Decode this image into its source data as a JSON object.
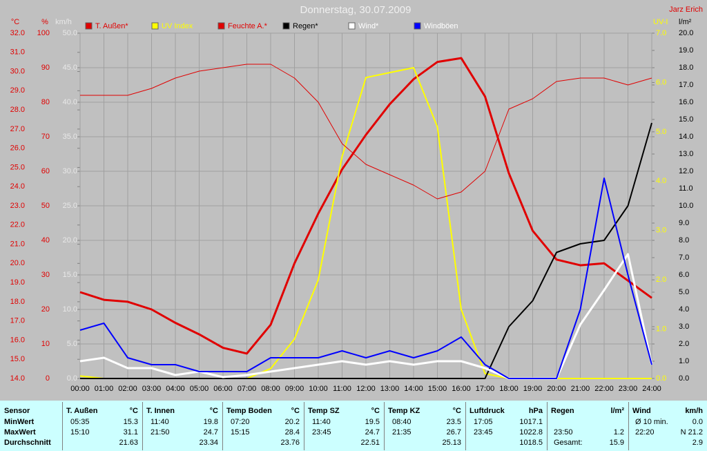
{
  "chart_data": {
    "type": "line",
    "title": "Donnerstag, 30.07.2009",
    "author": "Jarz Erich",
    "grid": true,
    "x": [
      "00:00",
      "01:00",
      "02:00",
      "03:00",
      "04:00",
      "05:00",
      "06:00",
      "07:00",
      "08:00",
      "09:00",
      "10:00",
      "11:00",
      "12:00",
      "13:00",
      "14:00",
      "15:00",
      "16:00",
      "17:00",
      "18:00",
      "19:00",
      "20:00",
      "21:00",
      "22:00",
      "23:00",
      "24:00"
    ],
    "axes": [
      {
        "label": "°C",
        "color": "#e00000",
        "lim": [
          14,
          32
        ],
        "ticks": [
          {
            "value": 14,
            "label": "14.0"
          },
          {
            "value": 15,
            "label": "15.0"
          },
          {
            "value": 16,
            "label": "16.0"
          },
          {
            "value": 17,
            "label": "17.0"
          },
          {
            "value": 18,
            "label": "18.0"
          },
          {
            "value": 19,
            "label": "19.0"
          },
          {
            "value": 20,
            "label": "20.0"
          },
          {
            "value": 21,
            "label": "21.0"
          },
          {
            "value": 22,
            "label": "22.0"
          },
          {
            "value": 23,
            "label": "23.0"
          },
          {
            "value": 24,
            "label": "24.0"
          },
          {
            "value": 25,
            "label": "25.0"
          },
          {
            "value": 26,
            "label": "26.0"
          },
          {
            "value": 27,
            "label": "27.0"
          },
          {
            "value": 28,
            "label": "28.0"
          },
          {
            "value": 29,
            "label": "29.0"
          },
          {
            "value": 30,
            "label": "30.0"
          },
          {
            "value": 31,
            "label": "31.0"
          },
          {
            "value": 32,
            "label": "32.0"
          }
        ]
      },
      {
        "label": "%",
        "color": "#e00000",
        "lim": [
          0,
          100
        ],
        "ticks": [
          0,
          10,
          20,
          30,
          40,
          50,
          60,
          70,
          80,
          90,
          100
        ]
      },
      {
        "label": "km/h",
        "color": "#e8e8e8",
        "lim": [
          0,
          50
        ],
        "ticks": [
          {
            "value": 0,
            "label": "0.0"
          },
          {
            "value": 5,
            "label": "5.0"
          },
          {
            "value": 10,
            "label": "10.0"
          },
          {
            "value": 15,
            "label": "15.0"
          },
          {
            "value": 20,
            "label": "20.0"
          },
          {
            "value": 25,
            "label": "25.0"
          },
          {
            "value": 30,
            "label": "30.0"
          },
          {
            "value": 35,
            "label": "35.0"
          },
          {
            "value": 40,
            "label": "40.0"
          },
          {
            "value": 45,
            "label": "45.0"
          },
          {
            "value": 50,
            "label": "50.0"
          }
        ]
      },
      {
        "label": "UV-I",
        "color": "#ffff00",
        "lim": [
          0,
          7
        ],
        "ticks": [
          {
            "value": 0,
            "label": "0.0"
          },
          {
            "value": 1,
            "label": "1.0"
          },
          {
            "value": 2,
            "label": "2.0"
          },
          {
            "value": 3,
            "label": "3.0"
          },
          {
            "value": 4,
            "label": "4.0"
          },
          {
            "value": 5,
            "label": "5.0"
          },
          {
            "value": 6,
            "label": "6.0"
          },
          {
            "value": 7,
            "label": "7.0"
          }
        ]
      },
      {
        "label": "l/m²",
        "color": "#000000",
        "lim": [
          0,
          20
        ],
        "ticks": [
          {
            "value": 0,
            "label": "0.0"
          },
          {
            "value": 1,
            "label": "1.0"
          },
          {
            "value": 2,
            "label": "2.0"
          },
          {
            "value": 3,
            "label": "3.0"
          },
          {
            "value": 4,
            "label": "4.0"
          },
          {
            "value": 5,
            "label": "5.0"
          },
          {
            "value": 6,
            "label": "6.0"
          },
          {
            "value": 7,
            "label": "7.0"
          },
          {
            "value": 8,
            "label": "8.0"
          },
          {
            "value": 9,
            "label": "9.0"
          },
          {
            "value": 10,
            "label": "10.0"
          },
          {
            "value": 11,
            "label": "11.0"
          },
          {
            "value": 12,
            "label": "12.0"
          },
          {
            "value": 13,
            "label": "13.0"
          },
          {
            "value": 14,
            "label": "14.0"
          },
          {
            "value": 15,
            "label": "15.0"
          },
          {
            "value": 16,
            "label": "16.0"
          },
          {
            "value": 17,
            "label": "17.0"
          },
          {
            "value": 18,
            "label": "18.0"
          },
          {
            "value": 19,
            "label": "19.0"
          },
          {
            "value": 20,
            "label": "20.0"
          }
        ]
      }
    ],
    "series": [
      {
        "name": "T. Außen*",
        "color": "#e00000",
        "axis": 0,
        "values": [
          18.5,
          18.1,
          18.0,
          17.6,
          16.9,
          16.3,
          15.6,
          15.3,
          16.8,
          20.0,
          22.6,
          24.9,
          26.7,
          28.3,
          29.6,
          30.5,
          30.7,
          28.7,
          24.7,
          21.7,
          20.2,
          19.9,
          20.0,
          19.1,
          18.2
        ]
      },
      {
        "name": "UV Index",
        "color": "#ffff00",
        "axis": 3,
        "values": [
          0.05,
          0,
          0,
          0,
          0,
          0,
          0,
          0,
          0.2,
          0.8,
          2.0,
          4.5,
          6.1,
          6.2,
          6.3,
          5.1,
          1.4,
          0.1,
          0,
          0,
          0,
          0,
          0,
          0,
          0
        ]
      },
      {
        "name": "Feuchte A.*",
        "color": "#e00000",
        "axis": 1,
        "values": [
          82,
          82,
          82,
          84,
          87,
          89,
          90,
          91,
          91,
          87,
          80,
          68,
          62,
          59,
          56,
          52,
          54,
          60,
          78,
          81,
          86,
          87,
          87,
          85,
          87
        ]
      },
      {
        "name": "Regen*",
        "color": "#000000",
        "axis": 4,
        "values": [
          0,
          0,
          0,
          0,
          0,
          0,
          0,
          0,
          0,
          0,
          0,
          0,
          0,
          0,
          0,
          0,
          0,
          0,
          3.0,
          4.5,
          7.3,
          7.8,
          8.0,
          10.0,
          14.8
        ]
      },
      {
        "name": "Wind*",
        "color": "#ffffff",
        "axis": 2,
        "values": [
          2.5,
          3.0,
          1.5,
          1.5,
          0.5,
          1.0,
          0.2,
          0.5,
          1.0,
          1.5,
          2.0,
          2.5,
          2.0,
          2.5,
          2.0,
          2.5,
          2.5,
          1.5,
          0,
          0,
          0,
          7.8,
          12.8,
          18.0,
          2.0
        ]
      },
      {
        "name": "Windböen",
        "color": "#0000ff",
        "axis": 2,
        "values": [
          7,
          8,
          3,
          2,
          2,
          1,
          1,
          1,
          3,
          3,
          3,
          4,
          3,
          4,
          3,
          4,
          6,
          2,
          0,
          0,
          0,
          10,
          29,
          15,
          2
        ]
      }
    ]
  },
  "table": {
    "row_labels": [
      "Sensor",
      "MinWert",
      "MaxWert",
      "Durchschnitt"
    ],
    "columns": [
      {
        "name": "T. Außen",
        "unit": "°C",
        "rows": [
          {
            "time": "05:35",
            "value": "15.3"
          },
          {
            "time": "15:10",
            "value": "31.1"
          },
          {
            "value": "21.63"
          }
        ]
      },
      {
        "name": "T. Innen",
        "unit": "°C",
        "rows": [
          {
            "time": "11:40",
            "value": "19.8"
          },
          {
            "time": "21:50",
            "value": "24.7"
          },
          {
            "value": "23.34"
          }
        ]
      },
      {
        "name": "Temp Boden",
        "unit": "°C",
        "rows": [
          {
            "time": "07:20",
            "value": "20.2"
          },
          {
            "time": "15:15",
            "value": "28.4"
          },
          {
            "value": "23.76"
          }
        ]
      },
      {
        "name": "Temp SZ",
        "unit": "°C",
        "rows": [
          {
            "time": "11:40",
            "value": "19.5"
          },
          {
            "time": "23:45",
            "value": "24.7"
          },
          {
            "value": "22.51"
          }
        ]
      },
      {
        "name": "Temp KZ",
        "unit": "°C",
        "rows": [
          {
            "time": "08:40",
            "value": "23.5"
          },
          {
            "time": "21:35",
            "value": "26.7"
          },
          {
            "value": "25.13"
          }
        ]
      },
      {
        "name": "Luftdruck",
        "unit": "hPa",
        "rows": [
          {
            "time": "17:05",
            "value": "1017.1"
          },
          {
            "time": "23:45",
            "value": "1022.8"
          },
          {
            "value": "1018.5"
          }
        ]
      },
      {
        "name": "Regen",
        "unit": "l/m²",
        "rows": [
          {},
          {
            "time": "23:50",
            "value": "1.2"
          },
          {
            "time": "Gesamt:",
            "value": "15.9"
          }
        ]
      },
      {
        "name": "Wind",
        "unit": "km/h",
        "rows": [
          {
            "time": "Ø 10 min.",
            "value": "0.0"
          },
          {
            "time": "22:20",
            "value": "N 21.2"
          },
          {
            "value": "2.9"
          }
        ]
      }
    ]
  }
}
